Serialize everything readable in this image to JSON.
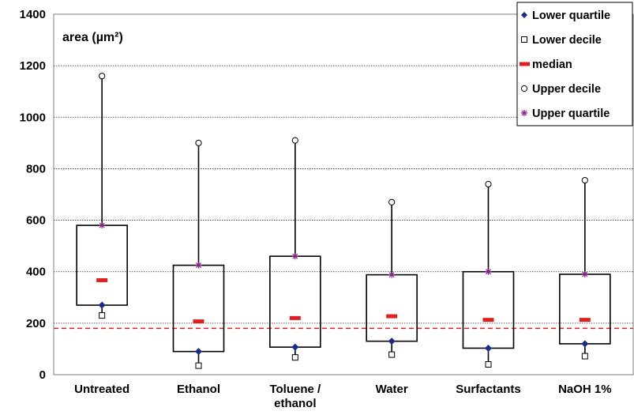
{
  "chart_data": {
    "type": "boxplot",
    "ylabel": "area (µm²)",
    "ylim": [
      0,
      1400
    ],
    "ytick_step": 200,
    "grid": true,
    "legend_position": "top-right",
    "categories": [
      [
        "Untreated"
      ],
      [
        "Ethanol"
      ],
      [
        "Toluene /",
        "ethanol"
      ],
      [
        "Water"
      ],
      [
        "Surfactants"
      ],
      [
        "NaOH 1%"
      ]
    ],
    "series": [
      {
        "name": "Lower decile",
        "values": [
          230,
          35,
          67,
          78,
          40,
          72
        ]
      },
      {
        "name": "Lower quartile",
        "values": [
          270,
          90,
          107,
          130,
          103,
          120
        ]
      },
      {
        "name": "median",
        "values": [
          367,
          207,
          220,
          227,
          213,
          213
        ]
      },
      {
        "name": "Upper quartile",
        "values": [
          580,
          425,
          460,
          388,
          400,
          390
        ]
      },
      {
        "name": "Upper decile",
        "values": [
          1160,
          900,
          910,
          670,
          740,
          755
        ]
      }
    ],
    "reference_line": {
      "value": 180,
      "style": "dashed",
      "color": "#e02020"
    },
    "legend": [
      "Lower quartile",
      "Lower decile",
      "median",
      "Upper decile",
      "Upper quartile"
    ],
    "colors": {
      "lower_quartile": "#1a2a8c",
      "median": "#e02020",
      "upper_quartile": "#8a1f8a",
      "reference": "#e02020"
    }
  }
}
